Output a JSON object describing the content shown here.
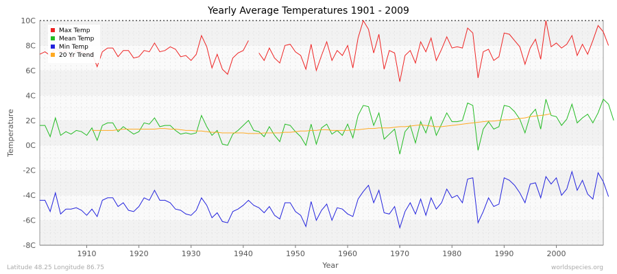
{
  "chart_data": {
    "type": "line",
    "title": "Yearly Average Temperatures 1901 - 2009",
    "xlabel": "Year",
    "ylabel": "Temperature",
    "xlim": [
      1901,
      2009
    ],
    "ylim": [
      -8,
      10
    ],
    "x_ticks": [
      1910,
      1920,
      1930,
      1940,
      1950,
      1960,
      1970,
      1980,
      1990,
      2000
    ],
    "y_ticks": [
      {
        "value": -8,
        "label": "-8C"
      },
      {
        "value": -6,
        "label": "-6C"
      },
      {
        "value": -4,
        "label": "-4C"
      },
      {
        "value": -2,
        "label": "-2C"
      },
      {
        "value": 0,
        "label": "0C"
      },
      {
        "value": 2,
        "label": "2C"
      },
      {
        "value": 4,
        "label": "4C"
      },
      {
        "value": 6,
        "label": "6C"
      },
      {
        "value": 8,
        "label": "8C"
      },
      {
        "value": 10,
        "label": "10C"
      }
    ],
    "grid": true,
    "legend_position": "top-left",
    "x_start": 1901,
    "series": [
      {
        "name": "Max Temp",
        "color": "#ee2222",
        "values": [
          7.3,
          7.5,
          7.2,
          7.8,
          7.5,
          7.6,
          7.0,
          7.6,
          7.5,
          7.3,
          7.4,
          6.3,
          7.5,
          7.8,
          7.8,
          7.1,
          7.6,
          7.6,
          7.0,
          7.1,
          7.6,
          7.5,
          8.2,
          7.5,
          7.6,
          7.9,
          7.7,
          7.1,
          7.2,
          6.8,
          7.3,
          8.8,
          7.9,
          6.2,
          7.3,
          6.1,
          5.7,
          7.0,
          7.4,
          7.6,
          8.4,
          null,
          7.4,
          6.8,
          7.8,
          7.0,
          6.6,
          8.0,
          8.1,
          7.5,
          7.2,
          6.1,
          8.1,
          6.0,
          7.2,
          8.3,
          6.8,
          7.6,
          7.2,
          8.0,
          6.2,
          8.6,
          10.0,
          9.3,
          7.4,
          8.9,
          6.1,
          7.6,
          7.4,
          5.1,
          7.2,
          7.6,
          6.6,
          8.3,
          7.5,
          8.6,
          6.8,
          7.7,
          8.7,
          7.8,
          7.9,
          7.8,
          9.4,
          9.0,
          5.4,
          7.5,
          7.7,
          6.8,
          7.1,
          9.0,
          8.9,
          8.4,
          7.9,
          6.5,
          7.8,
          8.5,
          6.9,
          10.0,
          7.9,
          8.2,
          7.8,
          8.1,
          8.8,
          7.2,
          8.1,
          7.3,
          8.4,
          9.6,
          9.1,
          8.0
        ]
      },
      {
        "name": "Mean Temp",
        "color": "#22bb22",
        "values": [
          1.6,
          1.6,
          0.7,
          2.2,
          0.8,
          1.1,
          0.9,
          1.2,
          1.1,
          0.8,
          1.4,
          0.4,
          1.6,
          1.8,
          1.8,
          1.1,
          1.5,
          1.2,
          0.9,
          1.1,
          1.8,
          1.7,
          2.2,
          1.5,
          1.6,
          1.6,
          1.2,
          0.9,
          1.0,
          0.9,
          1.0,
          2.4,
          1.5,
          0.8,
          1.2,
          0.1,
          0.0,
          0.9,
          1.2,
          1.6,
          2.0,
          1.2,
          1.1,
          0.7,
          1.5,
          0.8,
          0.3,
          1.7,
          1.6,
          1.1,
          0.7,
          0.0,
          1.7,
          0.1,
          1.4,
          1.7,
          0.9,
          1.2,
          0.8,
          1.7,
          0.6,
          2.4,
          3.2,
          3.1,
          1.6,
          2.6,
          0.5,
          0.9,
          1.3,
          -0.7,
          1.1,
          1.6,
          0.2,
          1.9,
          1.0,
          2.3,
          0.8,
          1.7,
          2.6,
          1.9,
          1.9,
          2.0,
          3.4,
          3.2,
          -0.4,
          1.3,
          1.9,
          1.3,
          1.5,
          3.2,
          3.1,
          2.7,
          2.1,
          1.0,
          2.4,
          2.9,
          1.3,
          3.7,
          2.4,
          2.3,
          1.6,
          2.1,
          3.3,
          1.8,
          2.2,
          2.5,
          1.8,
          2.6,
          3.7,
          3.3,
          2.0
        ]
      },
      {
        "name": "Min Temp",
        "color": "#2222dd",
        "values": [
          -4.4,
          -4.4,
          -5.3,
          -3.8,
          -5.5,
          -5.1,
          -5.1,
          -5.0,
          -5.2,
          -5.6,
          -5.1,
          -5.7,
          -4.4,
          -4.2,
          -4.2,
          -4.9,
          -4.6,
          -5.2,
          -5.3,
          -4.9,
          -4.2,
          -4.4,
          -3.6,
          -4.4,
          -4.4,
          -4.6,
          -5.1,
          -5.2,
          -5.5,
          -5.6,
          -5.2,
          -4.2,
          -4.8,
          -5.8,
          -5.4,
          -6.1,
          -6.2,
          -5.3,
          -5.1,
          -4.8,
          -4.4,
          -4.8,
          -5.0,
          -5.4,
          -4.9,
          -5.6,
          -5.9,
          -4.6,
          -4.6,
          -5.3,
          -5.6,
          -6.5,
          -4.5,
          -6.0,
          -5.2,
          -4.7,
          -6.0,
          -5.0,
          -5.1,
          -5.5,
          -5.7,
          -4.3,
          -3.7,
          -3.2,
          -4.6,
          -3.6,
          -5.4,
          -5.5,
          -4.9,
          -6.6,
          -5.3,
          -4.6,
          -5.5,
          -4.3,
          -5.6,
          -4.2,
          -5.1,
          -4.6,
          -3.5,
          -4.2,
          -4.0,
          -4.6,
          -2.7,
          -2.6,
          -6.2,
          -5.3,
          -4.2,
          -4.9,
          -4.7,
          -2.6,
          -2.8,
          -3.2,
          -3.8,
          -4.6,
          -3.1,
          -3.0,
          -4.2,
          -2.5,
          -3.1,
          -2.6,
          -4.0,
          -3.5,
          -2.1,
          -3.6,
          -2.8,
          -3.9,
          -4.3,
          -2.2,
          -2.9,
          -4.1
        ]
      },
      {
        "name": "20 Yr Trend",
        "color": "#ffaa22",
        "values": [
          null,
          null,
          null,
          null,
          null,
          null,
          null,
          null,
          null,
          null,
          1.2,
          1.2,
          1.2,
          1.2,
          1.2,
          1.25,
          1.3,
          1.3,
          1.3,
          1.3,
          1.3,
          1.3,
          1.3,
          1.35,
          1.35,
          1.3,
          1.3,
          1.25,
          1.2,
          1.2,
          1.15,
          1.15,
          1.1,
          1.05,
          1.05,
          1.0,
          1.0,
          1.0,
          1.0,
          1.0,
          0.95,
          0.95,
          0.95,
          1.0,
          1.0,
          1.0,
          1.0,
          1.05,
          1.05,
          1.1,
          1.15,
          1.15,
          1.2,
          1.2,
          1.25,
          1.25,
          1.2,
          1.2,
          1.2,
          1.2,
          1.25,
          1.25,
          1.3,
          1.35,
          1.35,
          1.4,
          1.4,
          1.4,
          1.45,
          1.5,
          1.5,
          1.55,
          1.6,
          1.65,
          1.6,
          1.55,
          1.5,
          1.5,
          1.55,
          1.6,
          1.65,
          1.7,
          1.75,
          1.8,
          1.85,
          1.9,
          1.95,
          1.95,
          2.0,
          2.05,
          2.05,
          2.1,
          2.15,
          2.2,
          2.3,
          2.35,
          2.4,
          2.45,
          2.55,
          null,
          null,
          null,
          null,
          null,
          null,
          null,
          null,
          null,
          null
        ]
      }
    ]
  },
  "footer": {
    "left": "Latitude 48.25 Longitude 86.75",
    "right": "worldspecies.org"
  }
}
